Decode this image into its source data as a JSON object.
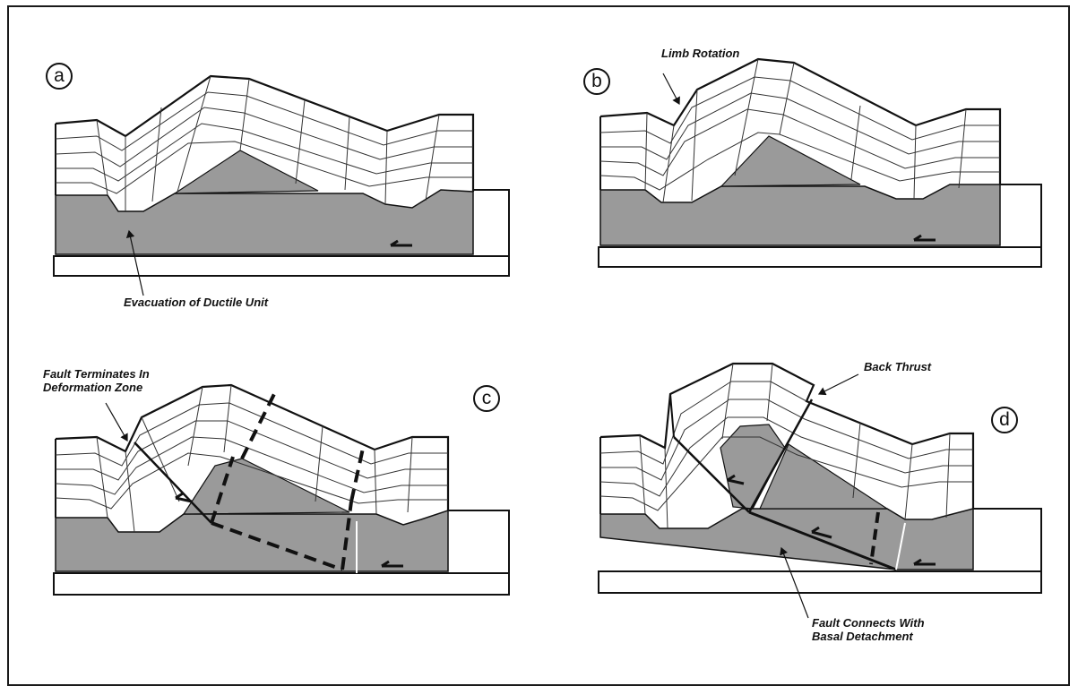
{
  "figure": {
    "panels": [
      {
        "id": "a",
        "label": "a",
        "annotations": [
          "Evacuation of Ductile Unit"
        ]
      },
      {
        "id": "b",
        "label": "b",
        "annotations": [
          "Limb Rotation"
        ]
      },
      {
        "id": "c",
        "label": "c",
        "annotations": [
          "Fault Terminates In",
          "Deformation Zone"
        ]
      },
      {
        "id": "d",
        "label": "d",
        "annotations": [
          "Back Thrust",
          "Fault Connects With",
          "Basal Detachment"
        ]
      }
    ],
    "colors": {
      "ductile_unit": "#9a9a9a",
      "lines": "#111111",
      "background": "#ffffff"
    }
  }
}
